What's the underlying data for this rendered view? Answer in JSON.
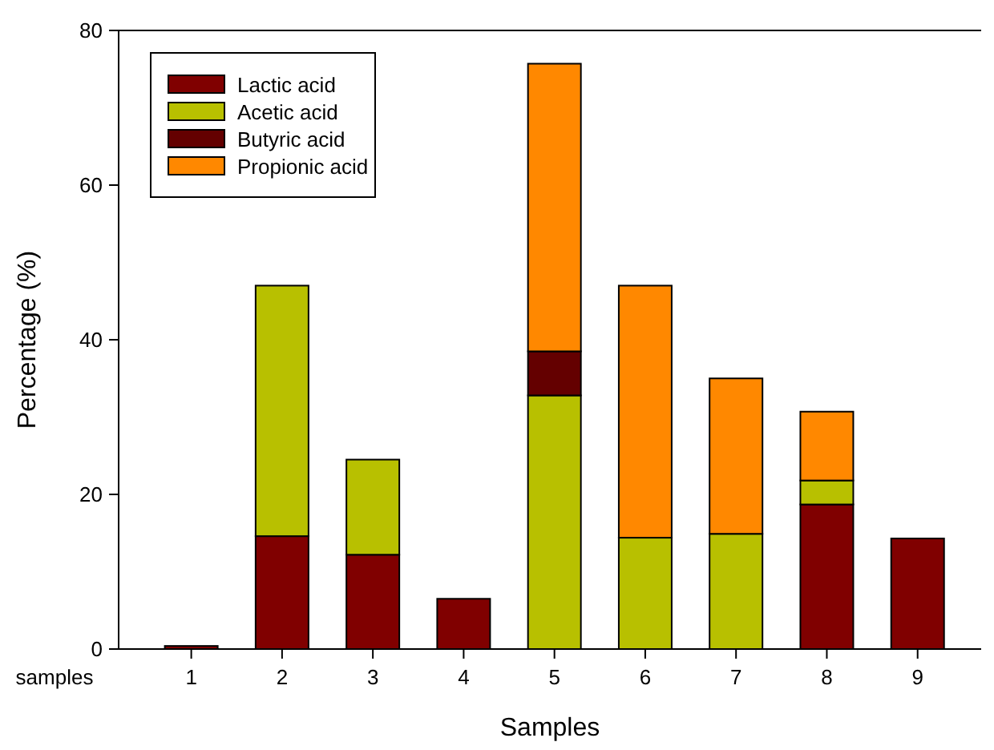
{
  "chart_data": {
    "type": "bar",
    "stacked": true,
    "xlabel": "Samples",
    "ylabel": "Percentage (%)",
    "annotations": [
      "samples"
    ],
    "categories": [
      "1",
      "2",
      "3",
      "4",
      "5",
      "6",
      "7",
      "8",
      "9"
    ],
    "series": [
      {
        "name": "Lactic acid",
        "color": "#800000",
        "values": [
          0.4,
          14.6,
          12.2,
          6.5,
          null,
          null,
          null,
          18.7,
          14.3
        ]
      },
      {
        "name": "Acetic acid",
        "color": "#b8c000",
        "values": [
          null,
          32.4,
          12.3,
          null,
          32.8,
          14.4,
          14.9,
          3.1,
          null
        ]
      },
      {
        "name": "Butyric acid",
        "color": "#640000",
        "values": [
          null,
          null,
          null,
          null,
          5.7,
          null,
          null,
          null,
          null
        ]
      },
      {
        "name": "Propionic acid",
        "color": "#ff8800",
        "values": [
          null,
          null,
          null,
          null,
          37.2,
          32.6,
          20.1,
          8.9,
          null
        ]
      }
    ],
    "ylim": [
      0,
      80
    ],
    "yticks": [
      0,
      20,
      40,
      60,
      80
    ],
    "legend": "top left"
  }
}
